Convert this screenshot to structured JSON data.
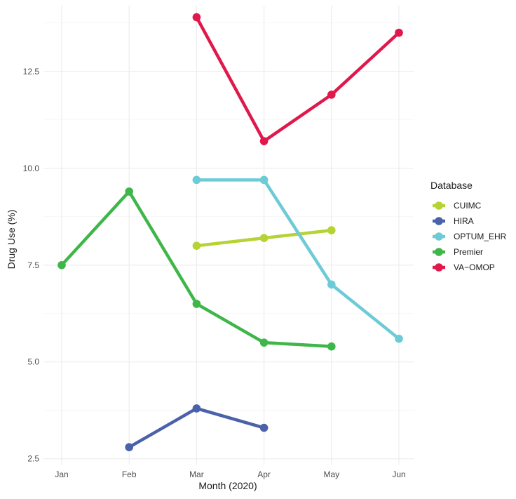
{
  "chart_data": {
    "type": "line",
    "title": "",
    "xlabel": "Month (2020)",
    "ylabel": "Drug Use (%)",
    "categories": [
      "Jan",
      "Feb",
      "Mar",
      "Apr",
      "May",
      "Jun"
    ],
    "ylim": [
      2.35,
      14.2
    ],
    "yticks": [
      2.5,
      5.0,
      7.5,
      10.0,
      12.5
    ],
    "ytick_labels": [
      "2.5",
      "5.0",
      "7.5",
      "10.0",
      "12.5"
    ],
    "grid": true,
    "legend": {
      "title": "Database",
      "position": "right"
    },
    "series": [
      {
        "name": "CUIMC",
        "color": "#b5d334",
        "values": [
          null,
          null,
          8.0,
          8.2,
          8.4,
          null
        ]
      },
      {
        "name": "HIRA",
        "color": "#4a62a9",
        "values": [
          null,
          2.8,
          3.8,
          3.3,
          null,
          null
        ]
      },
      {
        "name": "OPTUM_EHR",
        "color": "#6ccbd6",
        "values": [
          null,
          null,
          9.7,
          9.7,
          7.0,
          5.6
        ]
      },
      {
        "name": "Premier",
        "color": "#3fb649",
        "values": [
          7.5,
          9.4,
          6.5,
          5.5,
          5.4,
          null
        ]
      },
      {
        "name": "VA−OMOP",
        "color": "#e0184b",
        "values": [
          null,
          null,
          13.9,
          10.7,
          11.9,
          13.5
        ]
      }
    ]
  }
}
